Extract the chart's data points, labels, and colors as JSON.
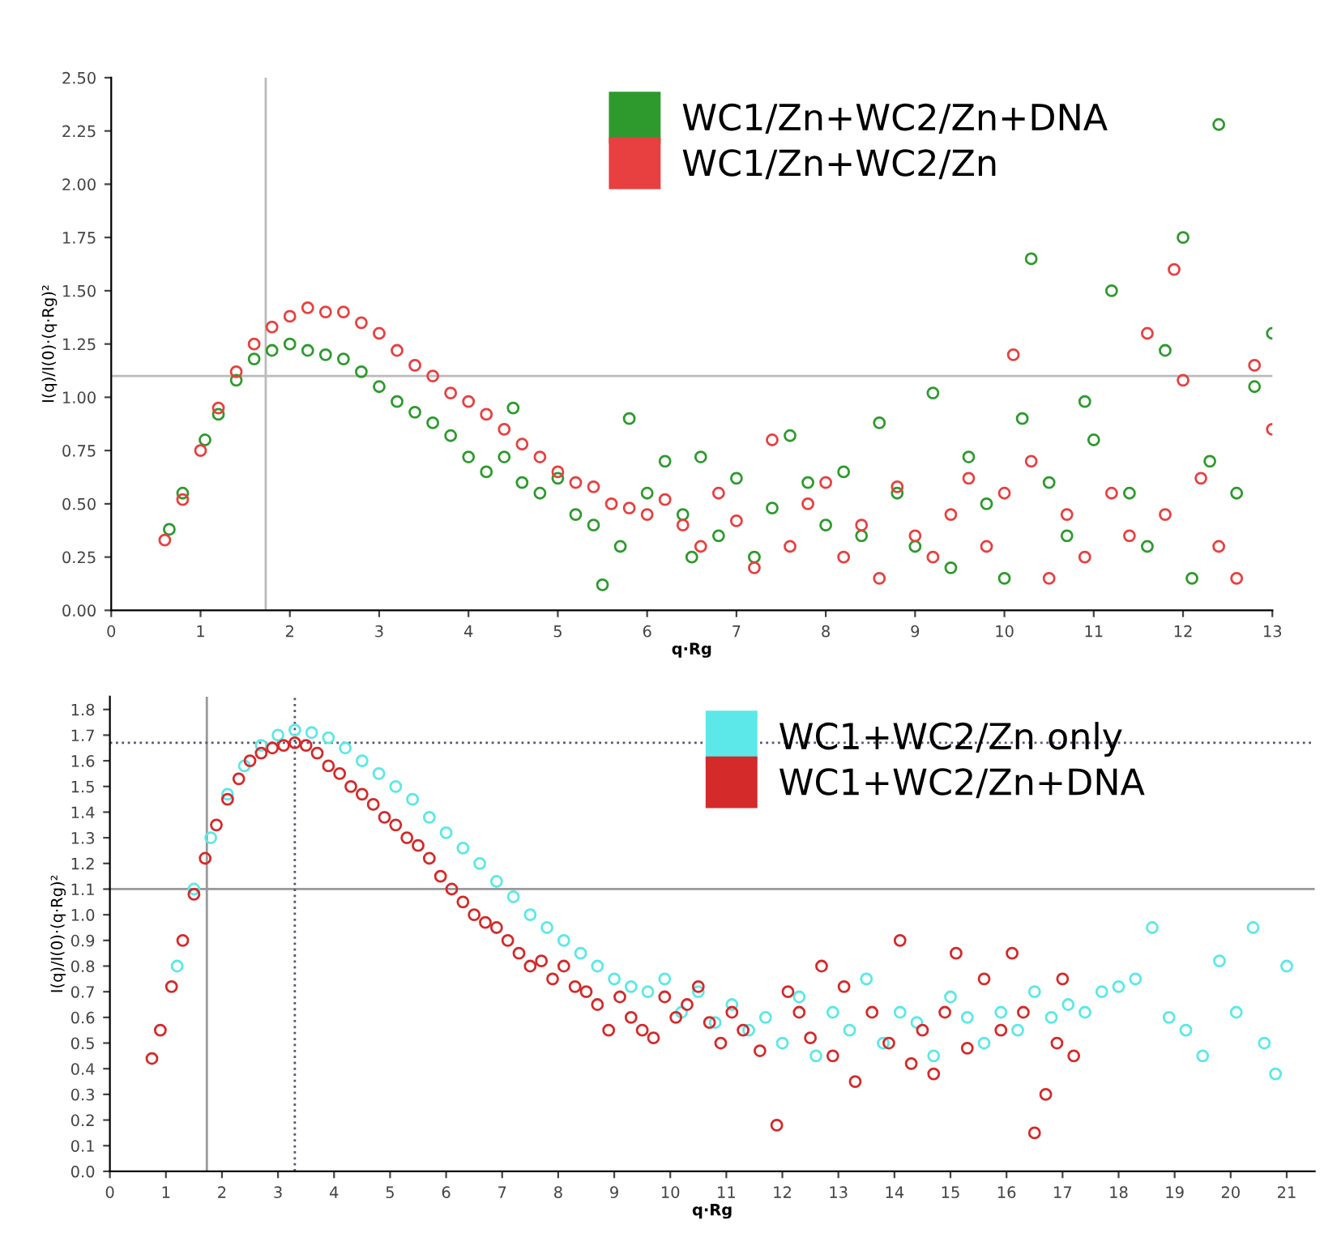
{
  "chart_data": [
    {
      "type": "scatter",
      "xlabel": "q·Rg",
      "ylabel": "I(q)/I(0)·(q·Rg)²",
      "xlim": [
        0,
        13
      ],
      "ylim": [
        0,
        2.5
      ],
      "xticks": [
        0,
        1,
        2,
        3,
        4,
        5,
        6,
        7,
        8,
        9,
        10,
        11,
        12,
        13
      ],
      "yticks": [
        {
          "value": 0,
          "label": "0.00"
        },
        {
          "value": 0.25,
          "label": "0.25"
        },
        {
          "value": 0.5,
          "label": "0.50"
        },
        {
          "value": 0.75,
          "label": "0.75"
        },
        {
          "value": 1.0,
          "label": "1.00"
        },
        {
          "value": 1.25,
          "label": "1.25"
        },
        {
          "value": 1.5,
          "label": "1.50"
        },
        {
          "value": 1.75,
          "label": "1.75"
        },
        {
          "value": 2.0,
          "label": "2.00"
        },
        {
          "value": 2.25,
          "label": "2.25"
        },
        {
          "value": 2.5,
          "label": "2.50"
        }
      ],
      "marker": "circle",
      "legend": "top right",
      "grid": false,
      "ref_lines": [
        {
          "axis": "x",
          "value": 1.73,
          "color": "#bbbbbb",
          "line_style": "solid"
        },
        {
          "axis": "y",
          "value": 1.1,
          "color": "#bbbbbb",
          "line_style": "solid"
        }
      ],
      "series": [
        {
          "name": "WC1/Zn+WC2/Zn+DNA",
          "color": "#2e9a2e",
          "x": [
            0.65,
            0.8,
            1.05,
            1.2,
            1.4,
            1.6,
            1.8,
            2.0,
            2.2,
            2.4,
            2.6,
            2.8,
            3.0,
            3.2,
            3.4,
            3.6,
            3.8,
            4.0,
            4.2,
            4.4,
            4.5,
            4.6,
            4.8,
            5.0,
            5.2,
            5.4,
            5.5,
            5.7,
            5.8,
            6.0,
            6.2,
            6.4,
            6.5,
            6.6,
            6.8,
            7.0,
            7.2,
            7.4,
            7.6,
            7.8,
            8.0,
            8.2,
            8.4,
            8.6,
            8.8,
            9.0,
            9.2,
            9.4,
            9.6,
            9.8,
            10.0,
            10.2,
            10.3,
            10.5,
            10.7,
            10.9,
            11.0,
            11.2,
            11.4,
            11.6,
            11.8,
            12.0,
            12.1,
            12.3,
            12.4,
            12.6,
            12.8,
            13.0
          ],
          "values": [
            0.38,
            0.55,
            0.8,
            0.92,
            1.08,
            1.18,
            1.22,
            1.25,
            1.22,
            1.2,
            1.18,
            1.12,
            1.05,
            0.98,
            0.93,
            0.88,
            0.82,
            0.72,
            0.65,
            0.72,
            0.95,
            0.6,
            0.55,
            0.62,
            0.45,
            0.4,
            0.12,
            0.3,
            0.9,
            0.55,
            0.7,
            0.45,
            0.25,
            0.72,
            0.35,
            0.62,
            0.25,
            0.48,
            0.82,
            0.6,
            0.4,
            0.65,
            0.35,
            0.88,
            0.55,
            0.3,
            1.02,
            0.2,
            0.72,
            0.5,
            0.15,
            0.9,
            1.65,
            0.6,
            0.35,
            0.98,
            0.8,
            1.5,
            0.55,
            0.3,
            1.22,
            1.75,
            0.15,
            0.7,
            2.28,
            0.55,
            1.05,
            1.3
          ]
        },
        {
          "name": "WC1/Zn+WC2/Zn",
          "color": "#e84040",
          "x": [
            0.6,
            0.8,
            1.0,
            1.2,
            1.4,
            1.6,
            1.8,
            2.0,
            2.2,
            2.4,
            2.6,
            2.8,
            3.0,
            3.2,
            3.4,
            3.6,
            3.8,
            4.0,
            4.2,
            4.4,
            4.6,
            4.8,
            5.0,
            5.2,
            5.4,
            5.6,
            5.8,
            6.0,
            6.2,
            6.4,
            6.6,
            6.8,
            7.0,
            7.2,
            7.4,
            7.6,
            7.8,
            8.0,
            8.2,
            8.4,
            8.6,
            8.8,
            9.0,
            9.2,
            9.4,
            9.6,
            9.8,
            10.0,
            10.1,
            10.3,
            10.5,
            10.7,
            10.9,
            11.2,
            11.4,
            11.6,
            11.8,
            11.9,
            12.0,
            12.2,
            12.4,
            12.6,
            12.8,
            13.0
          ],
          "values": [
            0.33,
            0.52,
            0.75,
            0.95,
            1.12,
            1.25,
            1.33,
            1.38,
            1.42,
            1.4,
            1.4,
            1.35,
            1.3,
            1.22,
            1.15,
            1.1,
            1.02,
            0.98,
            0.92,
            0.85,
            0.78,
            0.72,
            0.65,
            0.6,
            0.58,
            0.5,
            0.48,
            0.45,
            0.52,
            0.4,
            0.3,
            0.55,
            0.42,
            0.2,
            0.8,
            0.3,
            0.5,
            0.6,
            0.25,
            0.4,
            0.15,
            0.58,
            0.35,
            0.25,
            0.45,
            0.62,
            0.3,
            0.55,
            1.2,
            0.7,
            0.15,
            0.45,
            0.25,
            0.55,
            0.35,
            1.3,
            0.45,
            1.6,
            1.08,
            0.62,
            0.3,
            0.15,
            1.15,
            0.85
          ]
        }
      ]
    },
    {
      "type": "scatter",
      "xlabel": "q·Rg",
      "ylabel": "I(q)/I(0)·(q·Rg)²",
      "xlim": [
        0,
        21.5
      ],
      "ylim": [
        0,
        1.85
      ],
      "xticks": [
        0,
        1,
        2,
        3,
        4,
        5,
        6,
        7,
        8,
        9,
        10,
        11,
        12,
        13,
        14,
        15,
        16,
        17,
        18,
        19,
        20,
        21
      ],
      "yticks": [
        {
          "value": 0,
          "label": "0.0"
        },
        {
          "value": 0.1,
          "label": "0.1"
        },
        {
          "value": 0.2,
          "label": "0.2"
        },
        {
          "value": 0.3,
          "label": "0.3"
        },
        {
          "value": 0.4,
          "label": "0.4"
        },
        {
          "value": 0.5,
          "label": "0.5"
        },
        {
          "value": 0.6,
          "label": "0.6"
        },
        {
          "value": 0.7,
          "label": "0.7"
        },
        {
          "value": 0.8,
          "label": "0.8"
        },
        {
          "value": 0.9,
          "label": "0.9"
        },
        {
          "value": 1.0,
          "label": "1.0"
        },
        {
          "value": 1.1,
          "label": "1.1"
        },
        {
          "value": 1.2,
          "label": "1.2"
        },
        {
          "value": 1.3,
          "label": "1.3"
        },
        {
          "value": 1.4,
          "label": "1.4"
        },
        {
          "value": 1.5,
          "label": "1.5"
        },
        {
          "value": 1.6,
          "label": "1.6"
        },
        {
          "value": 1.7,
          "label": "1.7"
        },
        {
          "value": 1.8,
          "label": "1.8"
        }
      ],
      "marker": "circle",
      "legend": "top right",
      "grid": false,
      "ref_lines": [
        {
          "axis": "x",
          "value": 1.73,
          "color": "#999999",
          "line_style": "solid"
        },
        {
          "axis": "y",
          "value": 1.1,
          "color": "#999999",
          "line_style": "solid"
        },
        {
          "axis": "x",
          "value": 3.3,
          "color": "#555577",
          "line_style": "dotted"
        },
        {
          "axis": "y",
          "value": 1.67,
          "color": "#555577",
          "line_style": "dotted"
        }
      ],
      "series": [
        {
          "name": "WC1+WC2/Zn only",
          "color": "#5ce8e8",
          "x": [
            1.2,
            1.5,
            1.8,
            2.1,
            2.4,
            2.7,
            3.0,
            3.3,
            3.6,
            3.9,
            4.2,
            4.5,
            4.8,
            5.1,
            5.4,
            5.7,
            6.0,
            6.3,
            6.6,
            6.9,
            7.2,
            7.5,
            7.8,
            8.1,
            8.4,
            8.7,
            9.0,
            9.3,
            9.6,
            9.9,
            10.2,
            10.5,
            10.8,
            11.1,
            11.4,
            11.7,
            12.0,
            12.3,
            12.6,
            12.9,
            13.2,
            13.5,
            13.8,
            14.1,
            14.4,
            14.7,
            15.0,
            15.3,
            15.6,
            15.9,
            16.2,
            16.5,
            16.8,
            17.1,
            17.4,
            17.7,
            18.0,
            18.3,
            18.6,
            18.9,
            19.2,
            19.5,
            19.8,
            20.1,
            20.4,
            20.6,
            20.8,
            21.0
          ],
          "values": [
            0.8,
            1.1,
            1.3,
            1.47,
            1.58,
            1.66,
            1.7,
            1.72,
            1.71,
            1.69,
            1.65,
            1.6,
            1.55,
            1.5,
            1.45,
            1.38,
            1.32,
            1.26,
            1.2,
            1.13,
            1.07,
            1.0,
            0.95,
            0.9,
            0.85,
            0.8,
            0.75,
            0.72,
            0.7,
            0.75,
            0.62,
            0.7,
            0.58,
            0.65,
            0.55,
            0.6,
            0.5,
            0.68,
            0.45,
            0.62,
            0.55,
            0.75,
            0.5,
            0.62,
            0.58,
            0.45,
            0.68,
            0.6,
            0.5,
            0.62,
            0.55,
            0.7,
            0.6,
            0.65,
            0.62,
            0.7,
            0.72,
            0.75,
            0.95,
            0.6,
            0.55,
            0.45,
            0.82,
            0.62,
            0.95,
            0.5,
            0.38,
            0.8
          ]
        },
        {
          "name": "WC1+WC2/Zn+DNA",
          "color": "#d42a2a",
          "x": [
            0.75,
            0.9,
            1.1,
            1.3,
            1.5,
            1.7,
            1.9,
            2.1,
            2.3,
            2.5,
            2.7,
            2.9,
            3.1,
            3.3,
            3.5,
            3.7,
            3.9,
            4.1,
            4.3,
            4.5,
            4.7,
            4.9,
            5.1,
            5.3,
            5.5,
            5.7,
            5.9,
            6.1,
            6.3,
            6.5,
            6.7,
            6.9,
            7.1,
            7.3,
            7.5,
            7.7,
            7.9,
            8.1,
            8.3,
            8.5,
            8.7,
            8.9,
            9.1,
            9.3,
            9.5,
            9.7,
            9.9,
            10.1,
            10.3,
            10.5,
            10.7,
            10.9,
            11.1,
            11.3,
            11.6,
            11.9,
            12.1,
            12.3,
            12.5,
            12.7,
            12.9,
            13.1,
            13.3,
            13.6,
            13.9,
            14.1,
            14.3,
            14.5,
            14.7,
            14.9,
            15.1,
            15.3,
            15.6,
            15.9,
            16.1,
            16.3,
            16.5,
            16.7,
            16.9,
            17.0,
            17.2
          ],
          "values": [
            0.44,
            0.55,
            0.72,
            0.9,
            1.08,
            1.22,
            1.35,
            1.45,
            1.53,
            1.6,
            1.63,
            1.65,
            1.66,
            1.67,
            1.66,
            1.63,
            1.58,
            1.55,
            1.5,
            1.47,
            1.43,
            1.38,
            1.35,
            1.3,
            1.27,
            1.22,
            1.15,
            1.1,
            1.05,
            1.0,
            0.97,
            0.95,
            0.9,
            0.85,
            0.8,
            0.82,
            0.75,
            0.8,
            0.72,
            0.7,
            0.65,
            0.55,
            0.68,
            0.6,
            0.55,
            0.52,
            0.68,
            0.6,
            0.65,
            0.72,
            0.58,
            0.5,
            0.62,
            0.55,
            0.47,
            0.18,
            0.7,
            0.62,
            0.52,
            0.8,
            0.45,
            0.72,
            0.35,
            0.62,
            0.5,
            0.9,
            0.42,
            0.55,
            0.38,
            0.62,
            0.85,
            0.48,
            0.75,
            0.55,
            0.85,
            0.62,
            0.15,
            0.3,
            0.5,
            0.75,
            0.45
          ]
        }
      ]
    }
  ]
}
